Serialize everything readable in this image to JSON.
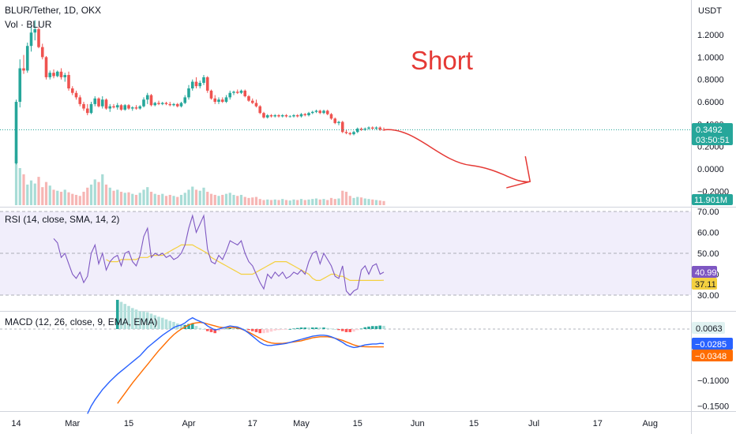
{
  "header": {
    "symbol": "BLUR/Tether, 1D, OKX",
    "volume": "Vol · BLUR"
  },
  "annotation": {
    "text": "Short",
    "color": "#e53935"
  },
  "colors": {
    "up": "#26a69a",
    "down": "#ef5350",
    "rsi_line": "#7e57c2",
    "rsi_ma": "#f4d03f",
    "macd_line": "#2962ff",
    "signal_line": "#ff6d00",
    "arrow": "#e53935",
    "last_price_line": "#26a69a"
  },
  "price_axis": {
    "unit": "USDT",
    "ticks": [
      "1.2000",
      "1.0000",
      "0.8000",
      "0.6000",
      "0.4000",
      "0.2000",
      "0.0000",
      "−0.2000"
    ],
    "tick_values": [
      1.2,
      1.0,
      0.8,
      0.6,
      0.4,
      0.2,
      0.0,
      -0.2
    ],
    "last_price": "0.3492",
    "last_price_value": 0.3492,
    "countdown": "03:50:51",
    "volume_label": "11.901M"
  },
  "rsi": {
    "title": "RSI (14, close, SMA, 14, 2)",
    "ticks": [
      "70.00",
      "60.00",
      "50.00",
      "40.00",
      "30.00"
    ],
    "tick_values": [
      70,
      60,
      50,
      40,
      30
    ],
    "rsi_value": "40.99",
    "ma_value": "37.11"
  },
  "macd": {
    "title": "MACD (12, 26, close, 9, EMA, EMA)",
    "ticks": [
      "0.0000",
      "−0.0500",
      "−0.1000",
      "−0.1500"
    ],
    "tick_values": [
      0.0,
      -0.05,
      -0.1,
      -0.15
    ],
    "hist_value": "0.0063",
    "macd_value": "−0.0285",
    "signal_value": "−0.0348"
  },
  "time_axis": {
    "labels": [
      "14",
      "Mar",
      "15",
      "Apr",
      "17",
      "May",
      "15",
      "Jun",
      "15",
      "Jul",
      "17",
      "Aug"
    ],
    "label_days": [
      0,
      15,
      30,
      46,
      63,
      76,
      91,
      107,
      122,
      138,
      155,
      169
    ]
  },
  "chart_data": {
    "type": "candlestick",
    "start_date": "2023-02-14",
    "candles": [
      {
        "t": 0,
        "o": 0.05,
        "h": 0.62,
        "l": 0.04,
        "c": 0.6
      },
      {
        "t": 1,
        "o": 0.6,
        "h": 0.98,
        "l": 0.55,
        "c": 0.9
      },
      {
        "t": 2,
        "o": 0.9,
        "h": 1.02,
        "l": 0.85,
        "c": 0.88
      },
      {
        "t": 3,
        "o": 0.88,
        "h": 1.13,
        "l": 0.86,
        "c": 1.1
      },
      {
        "t": 4,
        "o": 1.1,
        "h": 1.28,
        "l": 1.05,
        "c": 1.22
      },
      {
        "t": 5,
        "o": 1.22,
        "h": 1.33,
        "l": 1.15,
        "c": 1.25
      },
      {
        "t": 6,
        "o": 1.25,
        "h": 1.27,
        "l": 1.08,
        "c": 1.09
      },
      {
        "t": 7,
        "o": 1.09,
        "h": 1.12,
        "l": 0.98,
        "c": 1.0
      },
      {
        "t": 8,
        "o": 1.0,
        "h": 1.01,
        "l": 0.8,
        "c": 0.82
      },
      {
        "t": 9,
        "o": 0.82,
        "h": 0.88,
        "l": 0.8,
        "c": 0.86
      },
      {
        "t": 10,
        "o": 0.86,
        "h": 0.89,
        "l": 0.81,
        "c": 0.83
      },
      {
        "t": 11,
        "o": 0.83,
        "h": 0.88,
        "l": 0.82,
        "c": 0.87
      },
      {
        "t": 12,
        "o": 0.87,
        "h": 0.9,
        "l": 0.8,
        "c": 0.82
      },
      {
        "t": 13,
        "o": 0.82,
        "h": 0.86,
        "l": 0.78,
        "c": 0.84
      },
      {
        "t": 14,
        "o": 0.84,
        "h": 0.87,
        "l": 0.7,
        "c": 0.72
      },
      {
        "t": 15,
        "o": 0.72,
        "h": 0.74,
        "l": 0.66,
        "c": 0.68
      },
      {
        "t": 16,
        "o": 0.68,
        "h": 0.7,
        "l": 0.62,
        "c": 0.64
      },
      {
        "t": 17,
        "o": 0.64,
        "h": 0.66,
        "l": 0.56,
        "c": 0.58
      },
      {
        "t": 18,
        "o": 0.58,
        "h": 0.6,
        "l": 0.52,
        "c": 0.54
      },
      {
        "t": 19,
        "o": 0.54,
        "h": 0.58,
        "l": 0.48,
        "c": 0.5
      },
      {
        "t": 20,
        "o": 0.5,
        "h": 0.6,
        "l": 0.49,
        "c": 0.58
      },
      {
        "t": 21,
        "o": 0.58,
        "h": 0.65,
        "l": 0.56,
        "c": 0.63
      },
      {
        "t": 22,
        "o": 0.63,
        "h": 0.64,
        "l": 0.55,
        "c": 0.56
      },
      {
        "t": 23,
        "o": 0.56,
        "h": 0.65,
        "l": 0.54,
        "c": 0.62
      },
      {
        "t": 24,
        "o": 0.62,
        "h": 0.63,
        "l": 0.53,
        "c": 0.54
      },
      {
        "t": 25,
        "o": 0.54,
        "h": 0.58,
        "l": 0.51,
        "c": 0.56
      },
      {
        "t": 26,
        "o": 0.56,
        "h": 0.58,
        "l": 0.54,
        "c": 0.55
      },
      {
        "t": 27,
        "o": 0.55,
        "h": 0.59,
        "l": 0.53,
        "c": 0.57
      },
      {
        "t": 28,
        "o": 0.57,
        "h": 0.58,
        "l": 0.52,
        "c": 0.53
      },
      {
        "t": 29,
        "o": 0.53,
        "h": 0.58,
        "l": 0.52,
        "c": 0.57
      },
      {
        "t": 30,
        "o": 0.57,
        "h": 0.58,
        "l": 0.53,
        "c": 0.54
      },
      {
        "t": 31,
        "o": 0.54,
        "h": 0.56,
        "l": 0.52,
        "c": 0.55
      },
      {
        "t": 32,
        "o": 0.55,
        "h": 0.57,
        "l": 0.53,
        "c": 0.54
      },
      {
        "t": 33,
        "o": 0.54,
        "h": 0.57,
        "l": 0.53,
        "c": 0.56
      },
      {
        "t": 34,
        "o": 0.56,
        "h": 0.64,
        "l": 0.55,
        "c": 0.62
      },
      {
        "t": 35,
        "o": 0.62,
        "h": 0.68,
        "l": 0.58,
        "c": 0.66
      },
      {
        "t": 36,
        "o": 0.66,
        "h": 0.67,
        "l": 0.56,
        "c": 0.57
      },
      {
        "t": 37,
        "o": 0.57,
        "h": 0.6,
        "l": 0.56,
        "c": 0.59
      },
      {
        "t": 38,
        "o": 0.59,
        "h": 0.61,
        "l": 0.57,
        "c": 0.58
      },
      {
        "t": 39,
        "o": 0.58,
        "h": 0.6,
        "l": 0.57,
        "c": 0.59
      },
      {
        "t": 40,
        "o": 0.59,
        "h": 0.6,
        "l": 0.57,
        "c": 0.58
      },
      {
        "t": 41,
        "o": 0.58,
        "h": 0.6,
        "l": 0.56,
        "c": 0.57
      },
      {
        "t": 42,
        "o": 0.57,
        "h": 0.59,
        "l": 0.56,
        "c": 0.58
      },
      {
        "t": 43,
        "o": 0.58,
        "h": 0.59,
        "l": 0.55,
        "c": 0.56
      },
      {
        "t": 44,
        "o": 0.56,
        "h": 0.6,
        "l": 0.55,
        "c": 0.59
      },
      {
        "t": 45,
        "o": 0.59,
        "h": 0.66,
        "l": 0.58,
        "c": 0.64
      },
      {
        "t": 46,
        "o": 0.64,
        "h": 0.75,
        "l": 0.62,
        "c": 0.72
      },
      {
        "t": 47,
        "o": 0.72,
        "h": 0.8,
        "l": 0.7,
        "c": 0.78
      },
      {
        "t": 48,
        "o": 0.78,
        "h": 0.82,
        "l": 0.72,
        "c": 0.74
      },
      {
        "t": 49,
        "o": 0.74,
        "h": 0.79,
        "l": 0.72,
        "c": 0.77
      },
      {
        "t": 50,
        "o": 0.77,
        "h": 0.84,
        "l": 0.75,
        "c": 0.82
      },
      {
        "t": 51,
        "o": 0.82,
        "h": 0.83,
        "l": 0.68,
        "c": 0.7
      },
      {
        "t": 52,
        "o": 0.7,
        "h": 0.71,
        "l": 0.62,
        "c": 0.63
      },
      {
        "t": 53,
        "o": 0.63,
        "h": 0.66,
        "l": 0.58,
        "c": 0.6
      },
      {
        "t": 54,
        "o": 0.6,
        "h": 0.64,
        "l": 0.58,
        "c": 0.62
      },
      {
        "t": 55,
        "o": 0.62,
        "h": 0.64,
        "l": 0.59,
        "c": 0.6
      },
      {
        "t": 56,
        "o": 0.6,
        "h": 0.66,
        "l": 0.59,
        "c": 0.64
      },
      {
        "t": 57,
        "o": 0.64,
        "h": 0.7,
        "l": 0.62,
        "c": 0.68
      },
      {
        "t": 58,
        "o": 0.68,
        "h": 0.7,
        "l": 0.66,
        "c": 0.69
      },
      {
        "t": 59,
        "o": 0.69,
        "h": 0.71,
        "l": 0.67,
        "c": 0.68
      },
      {
        "t": 60,
        "o": 0.68,
        "h": 0.71,
        "l": 0.67,
        "c": 0.7
      },
      {
        "t": 61,
        "o": 0.7,
        "h": 0.71,
        "l": 0.64,
        "c": 0.65
      },
      {
        "t": 62,
        "o": 0.65,
        "h": 0.66,
        "l": 0.6,
        "c": 0.61
      },
      {
        "t": 63,
        "o": 0.61,
        "h": 0.63,
        "l": 0.58,
        "c": 0.59
      },
      {
        "t": 64,
        "o": 0.59,
        "h": 0.62,
        "l": 0.55,
        "c": 0.56
      },
      {
        "t": 65,
        "o": 0.56,
        "h": 0.57,
        "l": 0.49,
        "c": 0.5
      },
      {
        "t": 66,
        "o": 0.5,
        "h": 0.51,
        "l": 0.45,
        "c": 0.46
      },
      {
        "t": 67,
        "o": 0.46,
        "h": 0.49,
        "l": 0.45,
        "c": 0.48
      },
      {
        "t": 68,
        "o": 0.48,
        "h": 0.49,
        "l": 0.46,
        "c": 0.47
      },
      {
        "t": 69,
        "o": 0.47,
        "h": 0.49,
        "l": 0.46,
        "c": 0.48
      },
      {
        "t": 70,
        "o": 0.48,
        "h": 0.49,
        "l": 0.46,
        "c": 0.47
      },
      {
        "t": 71,
        "o": 0.47,
        "h": 0.49,
        "l": 0.46,
        "c": 0.48
      },
      {
        "t": 72,
        "o": 0.48,
        "h": 0.49,
        "l": 0.46,
        "c": 0.47
      },
      {
        "t": 73,
        "o": 0.47,
        "h": 0.48,
        "l": 0.46,
        "c": 0.47
      },
      {
        "t": 74,
        "o": 0.47,
        "h": 0.49,
        "l": 0.46,
        "c": 0.48
      },
      {
        "t": 75,
        "o": 0.48,
        "h": 0.49,
        "l": 0.46,
        "c": 0.47
      },
      {
        "t": 76,
        "o": 0.47,
        "h": 0.5,
        "l": 0.46,
        "c": 0.49
      },
      {
        "t": 77,
        "o": 0.49,
        "h": 0.5,
        "l": 0.47,
        "c": 0.48
      },
      {
        "t": 78,
        "o": 0.48,
        "h": 0.51,
        "l": 0.47,
        "c": 0.5
      },
      {
        "t": 79,
        "o": 0.5,
        "h": 0.52,
        "l": 0.49,
        "c": 0.51
      },
      {
        "t": 80,
        "o": 0.51,
        "h": 0.53,
        "l": 0.5,
        "c": 0.52
      },
      {
        "t": 81,
        "o": 0.52,
        "h": 0.53,
        "l": 0.49,
        "c": 0.5
      },
      {
        "t": 82,
        "o": 0.5,
        "h": 0.53,
        "l": 0.49,
        "c": 0.52
      },
      {
        "t": 83,
        "o": 0.52,
        "h": 0.53,
        "l": 0.48,
        "c": 0.49
      },
      {
        "t": 84,
        "o": 0.49,
        "h": 0.5,
        "l": 0.44,
        "c": 0.45
      },
      {
        "t": 85,
        "o": 0.45,
        "h": 0.46,
        "l": 0.4,
        "c": 0.41
      },
      {
        "t": 86,
        "o": 0.41,
        "h": 0.43,
        "l": 0.39,
        "c": 0.42
      },
      {
        "t": 87,
        "o": 0.42,
        "h": 0.43,
        "l": 0.32,
        "c": 0.33
      },
      {
        "t": 88,
        "o": 0.33,
        "h": 0.35,
        "l": 0.31,
        "c": 0.32
      },
      {
        "t": 89,
        "o": 0.32,
        "h": 0.33,
        "l": 0.3,
        "c": 0.31
      },
      {
        "t": 90,
        "o": 0.31,
        "h": 0.34,
        "l": 0.3,
        "c": 0.33
      },
      {
        "t": 91,
        "o": 0.33,
        "h": 0.37,
        "l": 0.32,
        "c": 0.36
      },
      {
        "t": 92,
        "o": 0.36,
        "h": 0.37,
        "l": 0.34,
        "c": 0.35
      },
      {
        "t": 93,
        "o": 0.35,
        "h": 0.37,
        "l": 0.34,
        "c": 0.36
      },
      {
        "t": 94,
        "o": 0.36,
        "h": 0.38,
        "l": 0.35,
        "c": 0.37
      },
      {
        "t": 95,
        "o": 0.37,
        "h": 0.38,
        "l": 0.35,
        "c": 0.36
      },
      {
        "t": 96,
        "o": 0.36,
        "h": 0.38,
        "l": 0.35,
        "c": 0.37
      },
      {
        "t": 97,
        "o": 0.37,
        "h": 0.38,
        "l": 0.34,
        "c": 0.35
      },
      {
        "t": 98,
        "o": 0.35,
        "h": 0.37,
        "l": 0.34,
        "c": 0.3492
      }
    ],
    "volume": [
      95,
      72,
      60,
      40,
      48,
      42,
      55,
      35,
      45,
      38,
      30,
      28,
      26,
      30,
      25,
      22,
      20,
      18,
      26,
      34,
      40,
      50,
      45,
      60,
      40,
      34,
      28,
      30,
      26,
      24,
      25,
      22,
      20,
      24,
      30,
      35,
      26,
      22,
      20,
      22,
      18,
      20,
      18,
      16,
      20,
      24,
      30,
      36,
      30,
      28,
      34,
      26,
      22,
      20,
      18,
      20,
      22,
      24,
      20,
      18,
      20,
      16,
      14,
      15,
      16,
      12,
      10,
      11,
      10,
      11,
      10,
      12,
      10,
      9,
      11,
      10,
      12,
      10,
      11,
      12,
      13,
      11,
      12,
      10,
      14,
      12,
      13,
      28,
      26,
      18,
      14,
      16,
      15,
      13,
      12,
      11,
      10,
      9,
      8
    ],
    "rsi": [
      null,
      null,
      null,
      null,
      null,
      null,
      null,
      null,
      null,
      null,
      57,
      55,
      48,
      50,
      45,
      40,
      38,
      41,
      36,
      39,
      50,
      54,
      45,
      50,
      42,
      46,
      48,
      49,
      44,
      50,
      51,
      46,
      44,
      49,
      58,
      62,
      48,
      50,
      49,
      50,
      48,
      49,
      47,
      48,
      50,
      54,
      62,
      68,
      60,
      64,
      68,
      52,
      46,
      45,
      49,
      47,
      51,
      56,
      55,
      54,
      56,
      50,
      46,
      44,
      40,
      36,
      33,
      40,
      38,
      41,
      39,
      41,
      38,
      39,
      41,
      40,
      42,
      40,
      46,
      50,
      51,
      45,
      50,
      47,
      44,
      39,
      38,
      44,
      32,
      30,
      32,
      33,
      42,
      44,
      40,
      44,
      45,
      40,
      41
    ],
    "rsi_ma": [
      null,
      null,
      null,
      null,
      null,
      null,
      null,
      null,
      null,
      null,
      null,
      null,
      null,
      null,
      null,
      null,
      null,
      null,
      null,
      null,
      null,
      null,
      null,
      null,
      47,
      46,
      46,
      46,
      47,
      47,
      47,
      47,
      47,
      48,
      48,
      48,
      49,
      49,
      49,
      49,
      50,
      51,
      52,
      53,
      54,
      54,
      54,
      54,
      53,
      52,
      51,
      50,
      48,
      47,
      46,
      45,
      44,
      43,
      42,
      41,
      40,
      40,
      40,
      40,
      41,
      42,
      43,
      44,
      45,
      46,
      46,
      46,
      46,
      45,
      44,
      43,
      42,
      41,
      40,
      38,
      37,
      37,
      38,
      39,
      40,
      40,
      39,
      39,
      38,
      37,
      37,
      37,
      37,
      37,
      37,
      37,
      37,
      37,
      37.11
    ],
    "macd": [
      null,
      null,
      null,
      null,
      null,
      null,
      null,
      null,
      null,
      null,
      null,
      null,
      null,
      null,
      null,
      null,
      null,
      null,
      null,
      -0.165,
      -0.15,
      -0.138,
      -0.128,
      -0.118,
      -0.11,
      -0.102,
      -0.095,
      -0.088,
      -0.082,
      -0.076,
      -0.07,
      -0.064,
      -0.058,
      -0.052,
      -0.044,
      -0.036,
      -0.03,
      -0.024,
      -0.018,
      -0.012,
      -0.007,
      -0.002,
      0.003,
      0.006,
      0.008,
      0.012,
      0.018,
      0.022,
      0.018,
      0.015,
      0.012,
      0.006,
      0.002,
      -0.002,
      0.0,
      0.002,
      0.004,
      0.006,
      0.005,
      0.004,
      0.001,
      -0.003,
      -0.008,
      -0.014,
      -0.02,
      -0.026,
      -0.03,
      -0.032,
      -0.032,
      -0.031,
      -0.03,
      -0.029,
      -0.028,
      -0.026,
      -0.024,
      -0.022,
      -0.02,
      -0.018,
      -0.016,
      -0.014,
      -0.013,
      -0.012,
      -0.012,
      -0.013,
      -0.015,
      -0.018,
      -0.022,
      -0.026,
      -0.031,
      -0.034,
      -0.036,
      -0.035,
      -0.033,
      -0.031,
      -0.03,
      -0.029,
      -0.029,
      -0.028,
      -0.0285
    ],
    "signal": [
      null,
      null,
      null,
      null,
      null,
      null,
      null,
      null,
      null,
      null,
      null,
      null,
      null,
      null,
      null,
      null,
      null,
      null,
      null,
      null,
      null,
      null,
      null,
      null,
      null,
      null,
      null,
      -0.145,
      -0.135,
      -0.125,
      -0.115,
      -0.105,
      -0.096,
      -0.087,
      -0.078,
      -0.069,
      -0.06,
      -0.051,
      -0.042,
      -0.034,
      -0.026,
      -0.018,
      -0.011,
      -0.005,
      0.0,
      0.004,
      0.008,
      0.011,
      0.012,
      0.013,
      0.012,
      0.01,
      0.008,
      0.006,
      0.004,
      0.003,
      0.003,
      0.003,
      0.003,
      0.002,
      0.0,
      -0.003,
      -0.006,
      -0.01,
      -0.014,
      -0.018,
      -0.022,
      -0.025,
      -0.027,
      -0.028,
      -0.028,
      -0.028,
      -0.027,
      -0.026,
      -0.025,
      -0.024,
      -0.023,
      -0.021,
      -0.019,
      -0.017,
      -0.016,
      -0.015,
      -0.015,
      -0.015,
      -0.016,
      -0.018,
      -0.02,
      -0.022,
      -0.025,
      -0.028,
      -0.031,
      -0.033,
      -0.034,
      -0.0345,
      -0.0348,
      -0.0348,
      -0.0348,
      -0.0348,
      -0.0348
    ],
    "projection": {
      "from_day": 98,
      "to_day": 137,
      "from_price": 0.3492,
      "to_price": -0.17
    }
  }
}
